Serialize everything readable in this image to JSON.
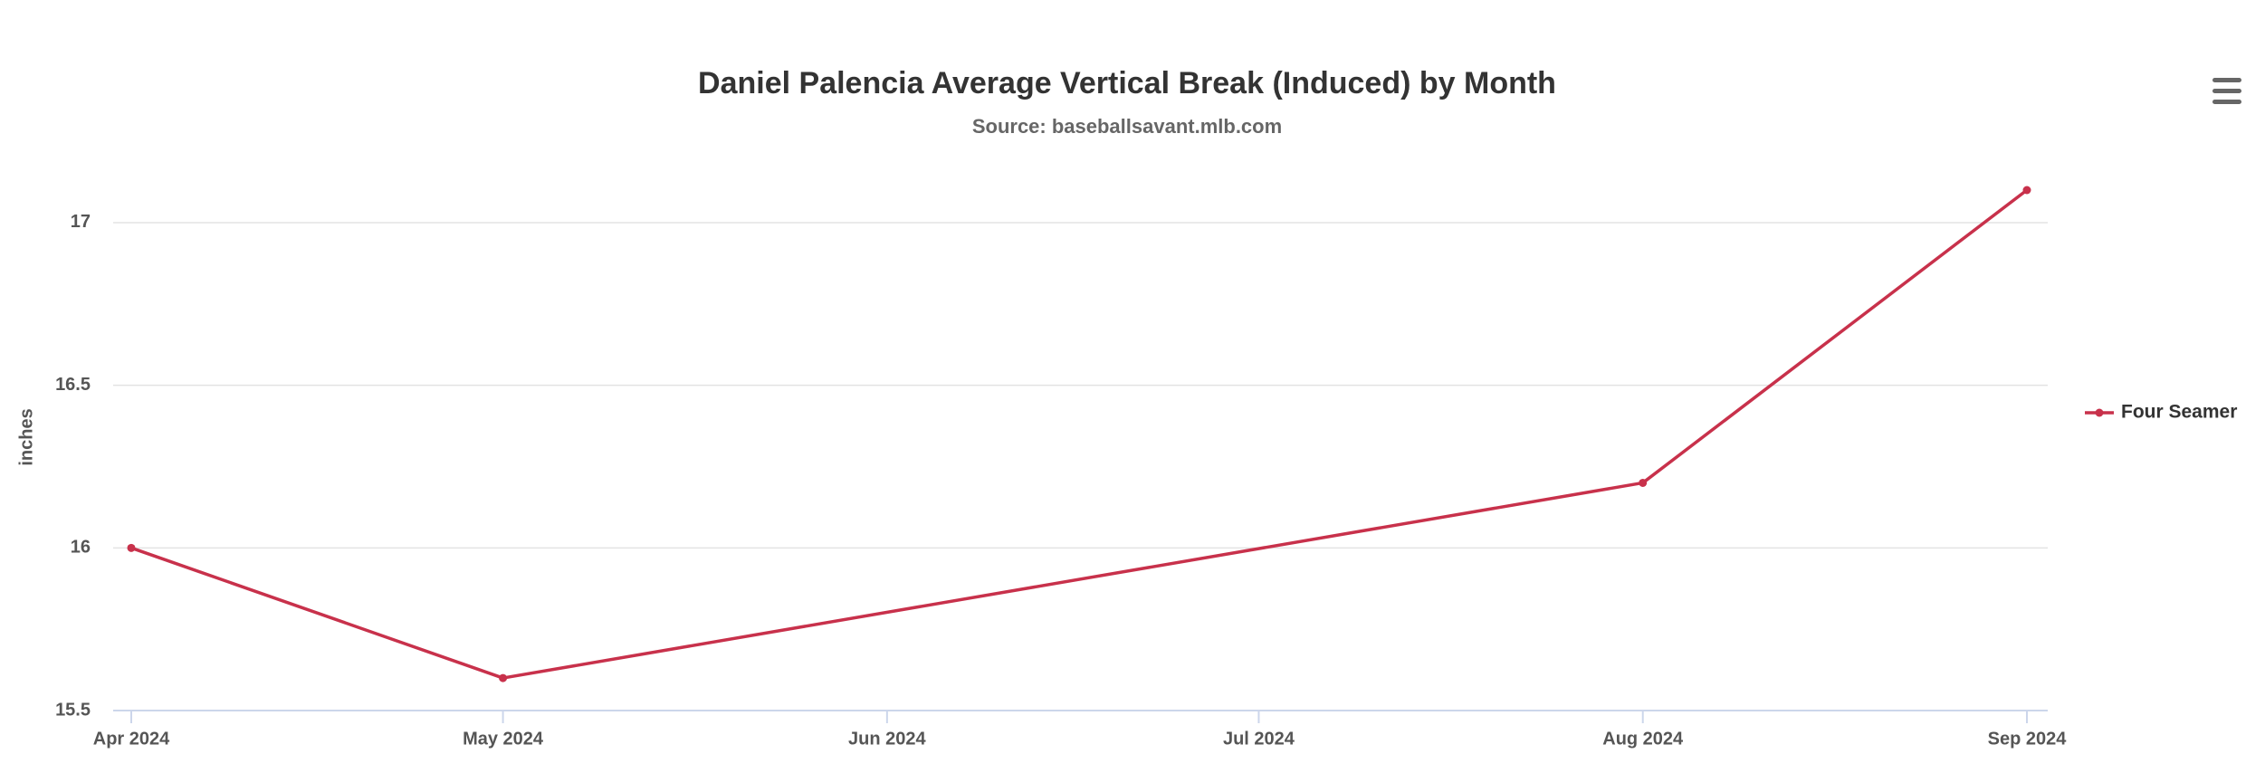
{
  "chart_data": {
    "type": "line",
    "title": "Daniel Palencia Average Vertical Break (Induced) by Month",
    "subtitle": "Source: baseballsavant.mlb.com",
    "y_label": "inches",
    "x": [
      "2024-04",
      "2024-05",
      "2024-08",
      "2024-09"
    ],
    "series": [
      {
        "name": "Four Seamer",
        "color": "#c8314b",
        "values": [
          16.0,
          15.6,
          16.2,
          17.1
        ]
      }
    ],
    "xlim": [
      "2024-04",
      "2024-09"
    ],
    "xticks": [
      {
        "value": "2024-04",
        "label": "Apr 2024"
      },
      {
        "value": "2024-05",
        "label": "May 2024"
      },
      {
        "value": "2024-06",
        "label": "Jun 2024"
      },
      {
        "value": "2024-07",
        "label": "Jul 2024"
      },
      {
        "value": "2024-08",
        "label": "Aug 2024"
      },
      {
        "value": "2024-09",
        "label": "Sep 2024"
      }
    ],
    "ylim": [
      15.5,
      17.1
    ],
    "yticks": [
      15.5,
      16,
      16.5,
      17
    ],
    "grid": true,
    "legend": "right"
  }
}
